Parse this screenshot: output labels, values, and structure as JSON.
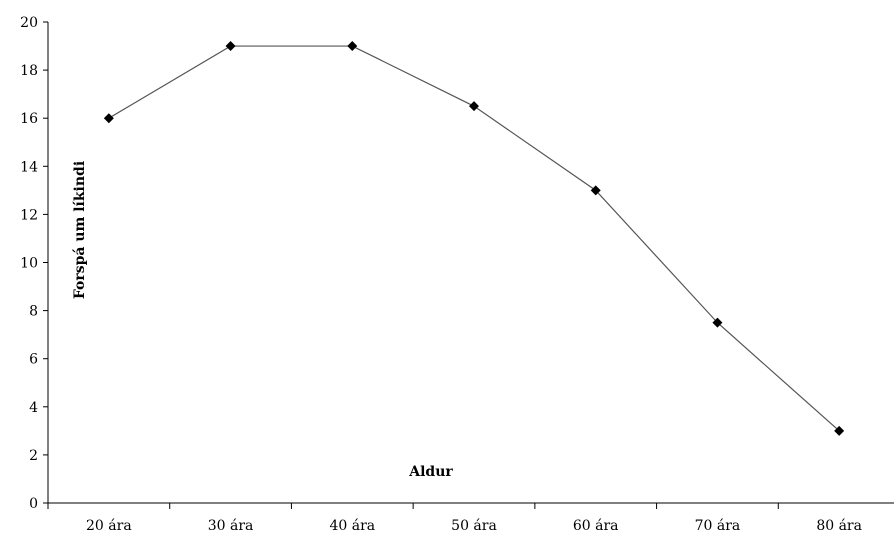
{
  "chart_data": {
    "type": "line",
    "title": "",
    "xlabel": "Aldur",
    "ylabel": "Forspá um líkindi",
    "categories": [
      "20 ára",
      "30 ára",
      "40 ára",
      "50 ára",
      "60 ára",
      "70 ára",
      "80 ára"
    ],
    "series": [
      {
        "values": [
          16,
          19,
          19,
          16.5,
          13,
          7.5,
          3
        ]
      }
    ],
    "ylim": [
      0,
      20
    ],
    "yticks": [
      0,
      2,
      4,
      6,
      8,
      10,
      12,
      14,
      16,
      18,
      20
    ],
    "grid": false,
    "legend": "none",
    "line_color": "#555555",
    "marker": "diamond",
    "marker_color": "#000000"
  }
}
